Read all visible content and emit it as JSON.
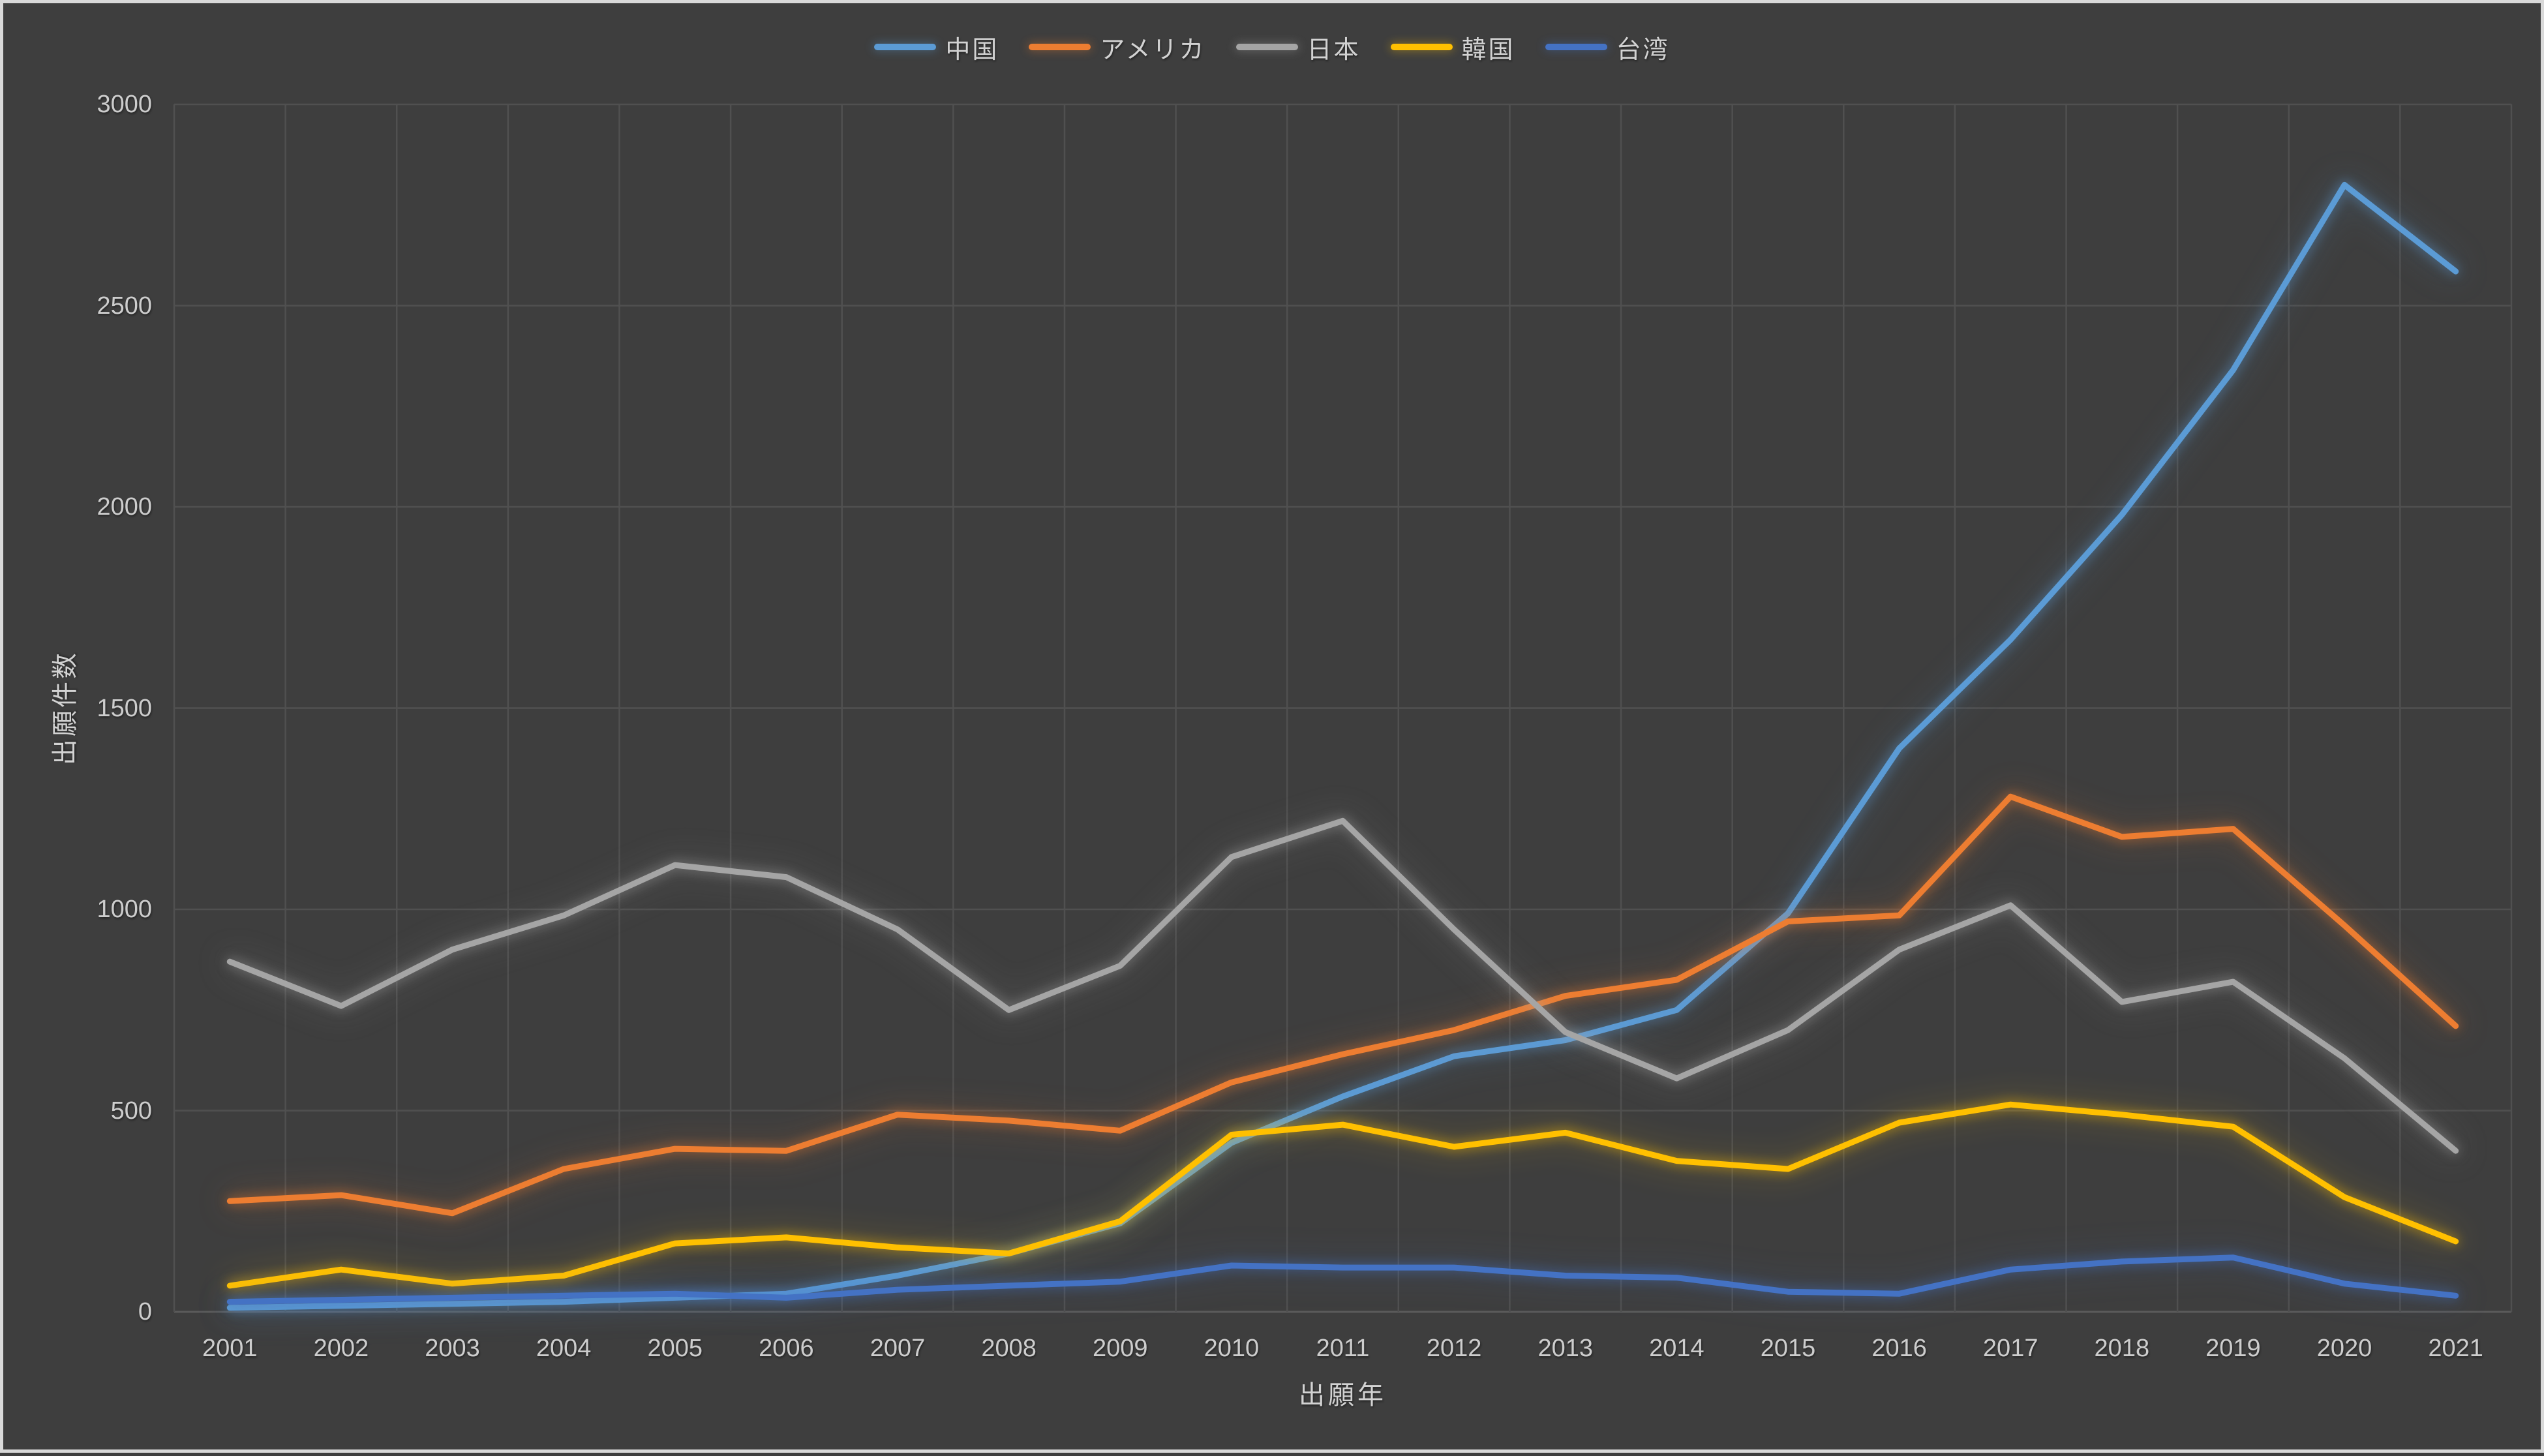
{
  "colors": {
    "background": "#3E3E3E",
    "frame_border": "#D9D9D9",
    "gridline": "#505050",
    "axis_line": "#5A5A5A",
    "text": "#D2D2D2"
  },
  "chart_data": {
    "type": "line",
    "title": "",
    "xlabel": "出願年",
    "ylabel": "出願件数",
    "ylim": [
      0,
      3000
    ],
    "y_tick_step": 500,
    "y_ticks": [
      "0",
      "500",
      "1000",
      "1500",
      "2000",
      "2500",
      "3000"
    ],
    "grid": true,
    "legend_position": "top-center",
    "line_style": "glow",
    "categories": [
      "2001",
      "2002",
      "2003",
      "2004",
      "2005",
      "2006",
      "2007",
      "2008",
      "2009",
      "2010",
      "2011",
      "2012",
      "2013",
      "2014",
      "2015",
      "2016",
      "2017",
      "2018",
      "2019",
      "2020",
      "2021"
    ],
    "series": [
      {
        "key": "china",
        "name": "中国",
        "color": "#5B9BD5",
        "values": [
          10,
          15,
          20,
          25,
          35,
          45,
          90,
          145,
          220,
          420,
          535,
          635,
          675,
          750,
          990,
          1400,
          1670,
          1980,
          2340,
          2800,
          2585
        ]
      },
      {
        "key": "usa",
        "name": "アメリカ",
        "color": "#ED7D31",
        "values": [
          275,
          290,
          245,
          355,
          405,
          400,
          490,
          475,
          450,
          570,
          640,
          700,
          785,
          825,
          970,
          985,
          1280,
          1180,
          1200,
          960,
          710
        ]
      },
      {
        "key": "japan",
        "name": "日本",
        "color": "#A5A5A5",
        "values": [
          870,
          760,
          900,
          985,
          1110,
          1080,
          950,
          750,
          860,
          1130,
          1220,
          950,
          695,
          580,
          700,
          900,
          1010,
          770,
          820,
          630,
          400
        ]
      },
      {
        "key": "korea",
        "name": "韓国",
        "color": "#FFC000",
        "values": [
          65,
          105,
          70,
          90,
          170,
          185,
          160,
          145,
          225,
          440,
          465,
          410,
          445,
          375,
          355,
          470,
          515,
          490,
          460,
          285,
          175
        ]
      },
      {
        "key": "taiwan",
        "name": "台湾",
        "color": "#4472C4",
        "values": [
          25,
          30,
          35,
          40,
          45,
          35,
          55,
          65,
          75,
          115,
          110,
          110,
          90,
          85,
          50,
          45,
          105,
          125,
          135,
          70,
          40
        ]
      }
    ]
  }
}
